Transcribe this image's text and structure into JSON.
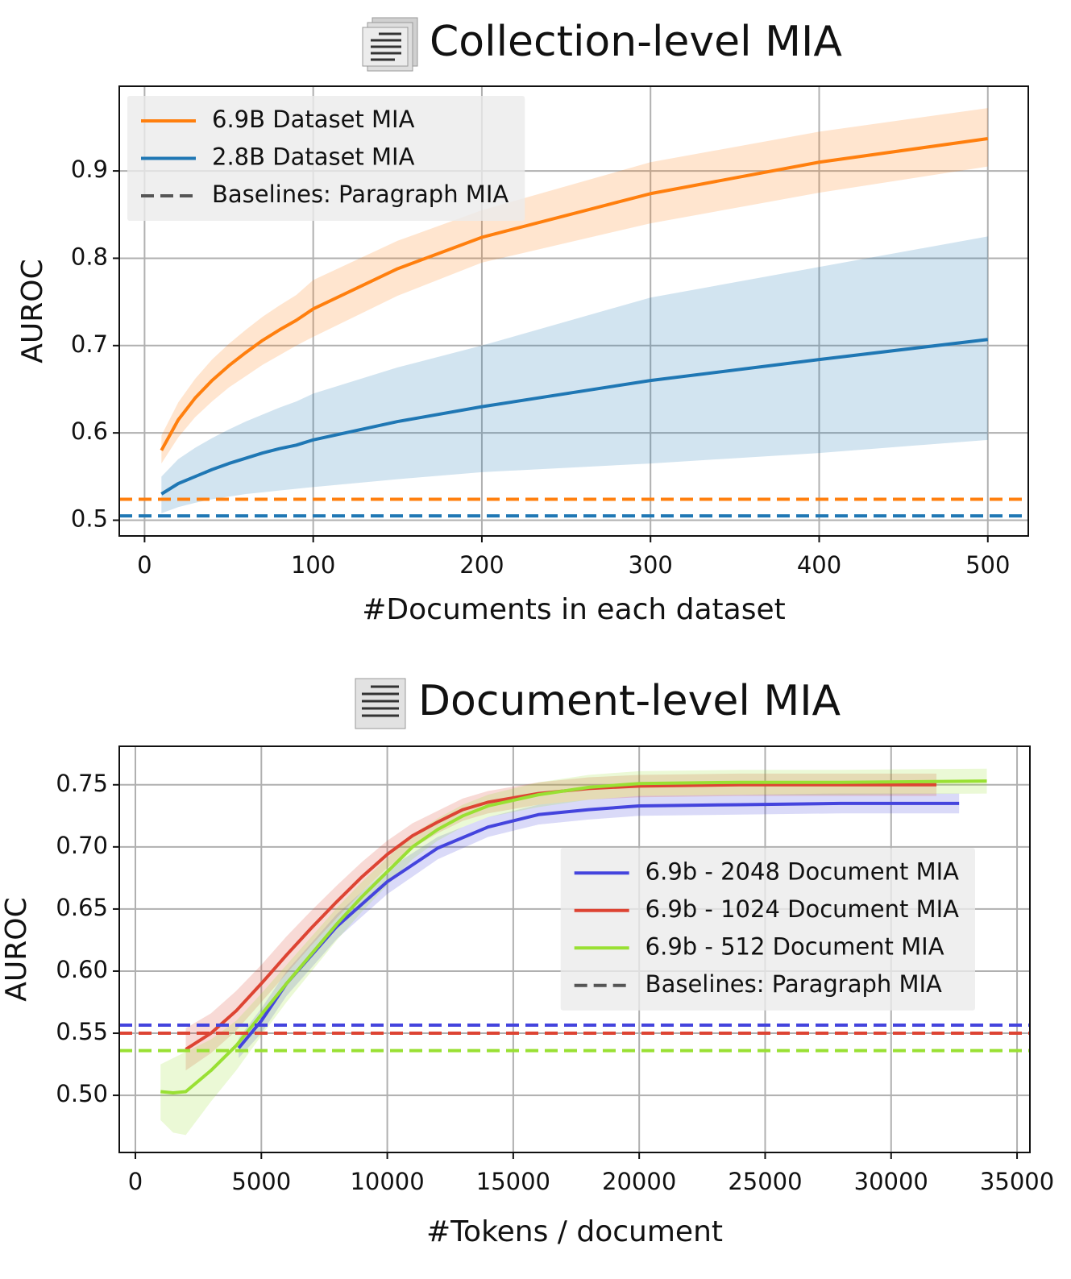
{
  "chart_data": [
    {
      "type": "line",
      "title": "Collection-level MIA",
      "x_label": "#Documents in each dataset",
      "y_label": "AUROC",
      "x": [
        10,
        20,
        30,
        40,
        50,
        60,
        70,
        80,
        90,
        100,
        150,
        200,
        300,
        400,
        500
      ],
      "xlim": [
        -15,
        524
      ],
      "xticks": [
        0,
        100,
        200,
        300,
        400,
        500
      ],
      "ylim": [
        0.482,
        0.997
      ],
      "yticks": [
        0.5,
        0.6,
        0.7,
        0.8,
        0.9
      ],
      "grid": true,
      "legend": "upper left",
      "baseline_label": "Baselines: Paragraph MIA",
      "series": [
        {
          "name": "6.9B Dataset MIA",
          "color": "#ff7f0e",
          "values": [
            0.58,
            0.615,
            0.64,
            0.66,
            0.677,
            0.692,
            0.706,
            0.718,
            0.729,
            0.742,
            0.788,
            0.824,
            0.874,
            0.91,
            0.937
          ],
          "lower": [
            0.565,
            0.595,
            0.618,
            0.636,
            0.652,
            0.665,
            0.678,
            0.689,
            0.7,
            0.71,
            0.757,
            0.795,
            0.84,
            0.875,
            0.905
          ],
          "upper": [
            0.597,
            0.635,
            0.662,
            0.684,
            0.702,
            0.718,
            0.733,
            0.746,
            0.758,
            0.775,
            0.82,
            0.855,
            0.91,
            0.945,
            0.972
          ],
          "baseline": 0.524
        },
        {
          "name": "2.8B Dataset MIA",
          "color": "#1f77b4",
          "values": [
            0.53,
            0.542,
            0.55,
            0.558,
            0.565,
            0.571,
            0.577,
            0.582,
            0.586,
            0.592,
            0.613,
            0.63,
            0.66,
            0.684,
            0.707
          ],
          "lower": [
            0.508,
            0.515,
            0.52,
            0.524,
            0.527,
            0.53,
            0.532,
            0.534,
            0.536,
            0.538,
            0.547,
            0.555,
            0.565,
            0.577,
            0.592
          ],
          "upper": [
            0.55,
            0.57,
            0.583,
            0.594,
            0.604,
            0.613,
            0.621,
            0.629,
            0.636,
            0.645,
            0.675,
            0.7,
            0.755,
            0.79,
            0.825
          ],
          "baseline": 0.505
        }
      ]
    },
    {
      "type": "line",
      "title": "Document-level MIA",
      "x_label": "#Tokens / document",
      "y_label": "AUROC",
      "xlim": [
        -640,
        35510
      ],
      "xticks": [
        0,
        5000,
        10000,
        15000,
        20000,
        25000,
        30000,
        35000
      ],
      "ylim": [
        0.454,
        0.781
      ],
      "yticks": [
        {
          "value": 0.5,
          "label": "0.50"
        },
        0.55,
        {
          "value": 0.6,
          "label": "0.60"
        },
        0.65,
        {
          "value": 0.7,
          "label": "0.70"
        },
        0.75
      ],
      "grid": true,
      "legend": "center right",
      "baseline_label": "Baselines: Paragraph MIA",
      "series": [
        {
          "name": "6.9b - 2048 Document MIA",
          "color": "#4444dd",
          "x": [
            4100,
            5000,
            6000,
            8000,
            10000,
            12000,
            14000,
            16000,
            18000,
            20000,
            24000,
            28000,
            32700
          ],
          "values": [
            0.538,
            0.56,
            0.59,
            0.636,
            0.672,
            0.699,
            0.716,
            0.726,
            0.73,
            0.733,
            0.734,
            0.735,
            0.735
          ],
          "lower": [
            0.53,
            0.55,
            0.58,
            0.626,
            0.662,
            0.69,
            0.708,
            0.718,
            0.722,
            0.725,
            0.726,
            0.727,
            0.727
          ],
          "upper": [
            0.546,
            0.57,
            0.6,
            0.646,
            0.682,
            0.708,
            0.724,
            0.734,
            0.738,
            0.741,
            0.742,
            0.743,
            0.743
          ],
          "baseline": 0.5565
        },
        {
          "name": "6.9b - 1024 Document MIA",
          "color": "#dd4433",
          "x": [
            2000,
            3000,
            4000,
            5000,
            6000,
            7000,
            8000,
            9000,
            10000,
            11000,
            12000,
            13000,
            14000,
            16000,
            18000,
            20000,
            24000,
            28000,
            31800
          ],
          "values": [
            0.537,
            0.55,
            0.568,
            0.59,
            0.613,
            0.635,
            0.656,
            0.676,
            0.694,
            0.709,
            0.72,
            0.73,
            0.736,
            0.743,
            0.747,
            0.749,
            0.75,
            0.75,
            0.75
          ],
          "lower": [
            0.52,
            0.534,
            0.552,
            0.575,
            0.598,
            0.621,
            0.643,
            0.664,
            0.683,
            0.699,
            0.711,
            0.721,
            0.727,
            0.734,
            0.738,
            0.74,
            0.741,
            0.741,
            0.741
          ],
          "upper": [
            0.554,
            0.566,
            0.584,
            0.605,
            0.628,
            0.649,
            0.669,
            0.688,
            0.705,
            0.719,
            0.729,
            0.739,
            0.745,
            0.752,
            0.756,
            0.758,
            0.759,
            0.759,
            0.759
          ],
          "baseline": 0.55
        },
        {
          "name": "6.9b - 512 Document MIA",
          "color": "#99e033",
          "x": [
            1000,
            1500,
            2000,
            3000,
            4000,
            5000,
            6000,
            8000,
            9000,
            10000,
            11000,
            12000,
            13000,
            14000,
            16000,
            18000,
            20000,
            24000,
            28000,
            33800
          ],
          "values": [
            0.503,
            0.502,
            0.503,
            0.52,
            0.54,
            0.565,
            0.59,
            0.638,
            0.66,
            0.68,
            0.7,
            0.714,
            0.725,
            0.733,
            0.742,
            0.748,
            0.751,
            0.752,
            0.752,
            0.753
          ],
          "lower": [
            0.48,
            0.47,
            0.468,
            0.495,
            0.52,
            0.548,
            0.575,
            0.625,
            0.648,
            0.669,
            0.69,
            0.705,
            0.716,
            0.724,
            0.732,
            0.738,
            0.741,
            0.742,
            0.742,
            0.743
          ],
          "upper": [
            0.525,
            0.53,
            0.535,
            0.545,
            0.56,
            0.582,
            0.605,
            0.651,
            0.672,
            0.691,
            0.71,
            0.723,
            0.734,
            0.742,
            0.752,
            0.758,
            0.761,
            0.762,
            0.762,
            0.763
          ],
          "baseline": 0.536
        }
      ]
    }
  ]
}
